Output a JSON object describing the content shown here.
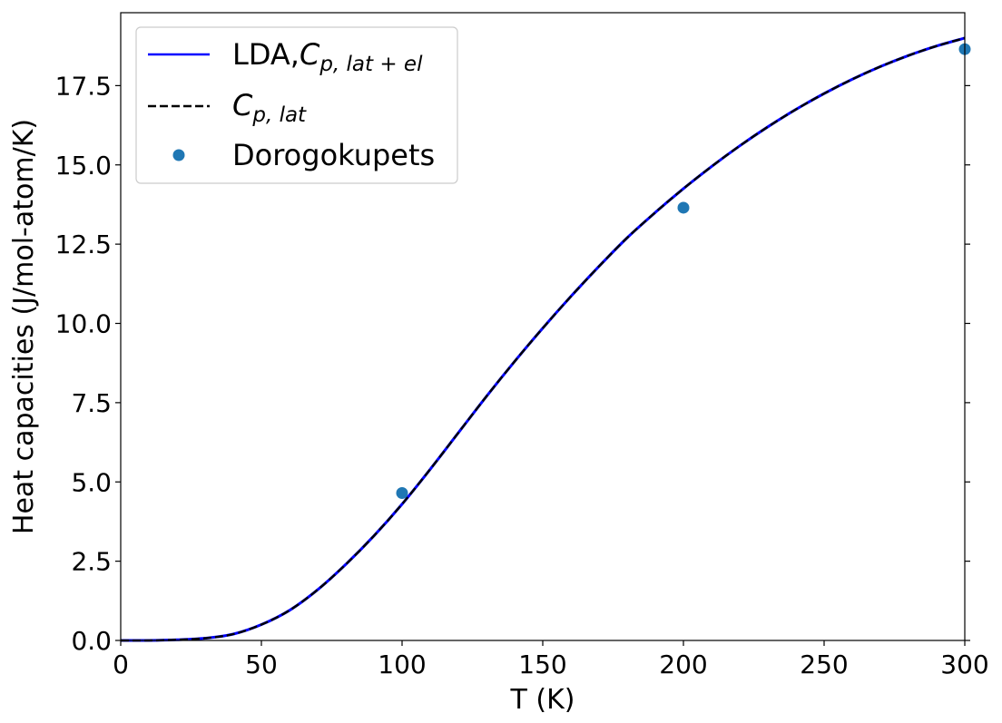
{
  "chart_data": {
    "type": "line",
    "title": "",
    "xlabel": "T (K)",
    "ylabel": "Heat capacities (J/mol-atom/K)",
    "xlim": [
      0,
      300
    ],
    "ylim": [
      0,
      19.8
    ],
    "xticks": [
      0,
      50,
      100,
      150,
      200,
      250,
      300
    ],
    "xtick_labels": [
      "0",
      "50",
      "100",
      "150",
      "200",
      "250",
      "300"
    ],
    "yticks": [
      0,
      2.5,
      5,
      7.5,
      10,
      12.5,
      15,
      17.5
    ],
    "ytick_labels": [
      "0.0",
      "2.5",
      "5.0",
      "7.5",
      "10.0",
      "12.5",
      "15.0",
      "17.5"
    ],
    "grid": false,
    "legend_position": "top-left",
    "series": [
      {
        "name_main": "LDA,",
        "name_math_base": "C",
        "name_math_sub": "p, lat + el",
        "style": "solid",
        "color": "#0000ff",
        "x": [
          0,
          10,
          20,
          30,
          40,
          50,
          60,
          70,
          80,
          90,
          100,
          110,
          120,
          130,
          140,
          150,
          160,
          170,
          180,
          190,
          200,
          210,
          220,
          230,
          240,
          250,
          260,
          270,
          280,
          290,
          300
        ],
        "y": [
          0,
          0.0,
          0.02,
          0.07,
          0.2,
          0.5,
          0.95,
          1.6,
          2.4,
          3.3,
          4.3,
          5.4,
          6.55,
          7.7,
          8.8,
          9.85,
          10.85,
          11.8,
          12.7,
          13.5,
          14.25,
          14.95,
          15.6,
          16.2,
          16.75,
          17.25,
          17.7,
          18.1,
          18.45,
          18.75,
          19.0
        ]
      },
      {
        "name_math_base": "C",
        "name_math_sub": "p, lat",
        "style": "dashed",
        "color": "#000000",
        "x": [
          0,
          10,
          20,
          30,
          40,
          50,
          60,
          70,
          80,
          90,
          100,
          110,
          120,
          130,
          140,
          150,
          160,
          170,
          180,
          190,
          200,
          210,
          220,
          230,
          240,
          250,
          260,
          270,
          280,
          290,
          300
        ],
        "y": [
          0,
          0.0,
          0.02,
          0.07,
          0.2,
          0.5,
          0.95,
          1.6,
          2.4,
          3.3,
          4.3,
          5.4,
          6.55,
          7.7,
          8.8,
          9.85,
          10.85,
          11.8,
          12.7,
          13.5,
          14.25,
          14.95,
          15.6,
          16.2,
          16.75,
          17.25,
          17.7,
          18.1,
          18.45,
          18.75,
          19.0
        ]
      },
      {
        "name": "Dorogokupets",
        "style": "markers",
        "color": "#1f77b4",
        "x": [
          100,
          200,
          300
        ],
        "y": [
          4.65,
          13.65,
          18.65
        ]
      }
    ]
  }
}
